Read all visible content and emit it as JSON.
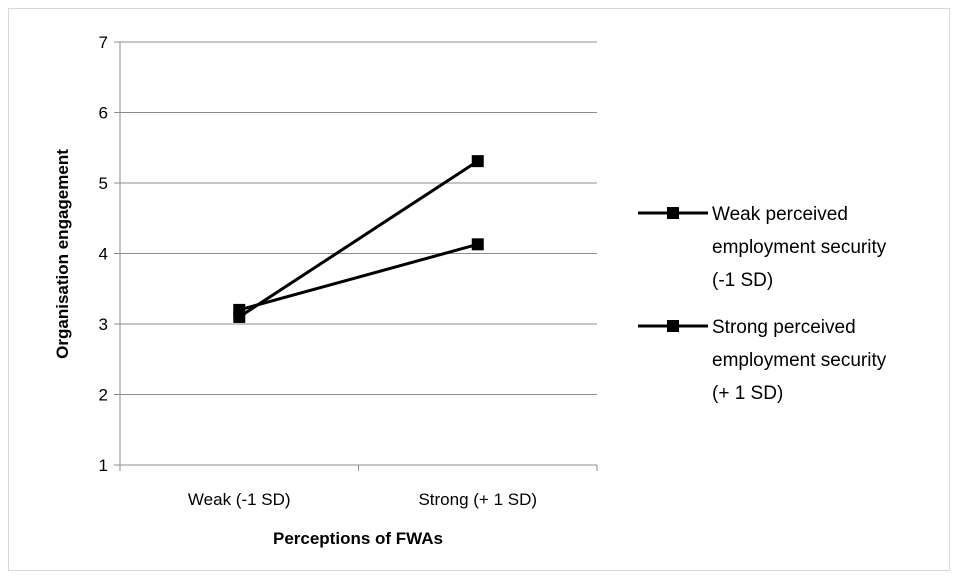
{
  "chart_data": {
    "type": "line",
    "title": "",
    "xlabel": "Perceptions of FWAs",
    "ylabel": "Organisation engagement",
    "categories": [
      "Weak (-1 SD)",
      "Strong (+ 1 SD)"
    ],
    "ylim": [
      1,
      7
    ],
    "yticks": [
      1,
      2,
      3,
      4,
      5,
      6,
      7
    ],
    "grid": true,
    "legend_position": "right",
    "series": [
      {
        "name": "Weak perceived employment security (-1 SD)",
        "values": [
          3.2,
          4.13
        ],
        "color": "#000000",
        "marker": "square"
      },
      {
        "name": "Strong perceived employment security (+ 1 SD)",
        "values": [
          3.1,
          5.31
        ],
        "color": "#000000",
        "marker": "square"
      }
    ]
  },
  "legend": {
    "items": [
      {
        "lines": [
          "Weak perceived",
          "employment security",
          "(-1 SD)"
        ]
      },
      {
        "lines": [
          "Strong perceived",
          "employment security",
          "(+ 1 SD)"
        ]
      }
    ]
  }
}
